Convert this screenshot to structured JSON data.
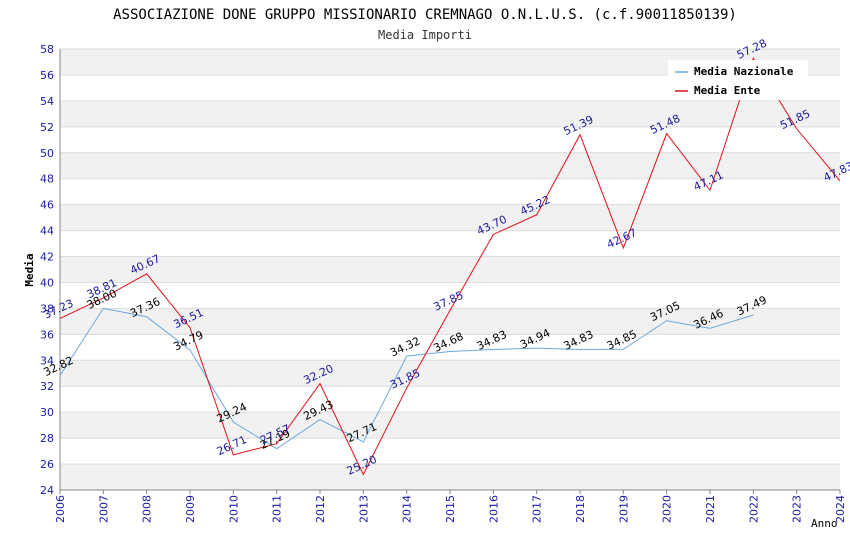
{
  "chart_data": {
    "type": "line",
    "title": "ASSOCIAZIONE DONE GRUPPO MISSIONARIO CREMNAGO O.N.L.U.S. (c.f.90011850139)",
    "subtitle": "Media Importi",
    "xlabel": "Anno",
    "ylabel": "Media",
    "ylim": [
      24,
      58
    ],
    "ytick_step": 2,
    "categories": [
      "2006",
      "2007",
      "2008",
      "2009",
      "2010",
      "2011",
      "2012",
      "2013",
      "2014",
      "2015",
      "2016",
      "2017",
      "2018",
      "2019",
      "2020",
      "2021",
      "2022",
      "2023",
      "2024"
    ],
    "series": [
      {
        "name": "Media Nazionale",
        "color": "#6aa8e0",
        "label_color": "#000000",
        "values": [
          32.82,
          38.0,
          37.36,
          34.79,
          29.24,
          27.19,
          29.43,
          27.71,
          34.32,
          34.68,
          34.83,
          34.94,
          34.83,
          34.85,
          37.05,
          36.46,
          37.49,
          null,
          null
        ],
        "labels": [
          "32.82",
          "38.00",
          "37.36",
          "34.79",
          "29.24",
          "27.19",
          "29.43",
          "27.71",
          "34.32",
          "34.68",
          "34.83",
          "34.94",
          "34.83",
          "34.85",
          "37.05",
          "36.46",
          "37.49",
          null,
          null
        ]
      },
      {
        "name": "Media Ente",
        "color": "#e0101a",
        "label_color": "#1a1aa0",
        "values": [
          37.23,
          38.81,
          40.67,
          36.51,
          26.71,
          27.57,
          32.2,
          25.2,
          31.85,
          37.85,
          43.7,
          45.22,
          51.39,
          42.67,
          51.48,
          47.11,
          57.28,
          51.85,
          47.83
        ],
        "labels": [
          "37.23",
          "38.81",
          "40.67",
          "36.51",
          "26.71",
          "27.57",
          "32.20",
          "25.20",
          "31.85",
          "37.85",
          "43.70",
          "45.22",
          "51.39",
          "42.67",
          "51.48",
          "47.11",
          "57.28",
          "51.85",
          "47.83"
        ]
      }
    ],
    "legend": "top-right",
    "grid": true
  }
}
